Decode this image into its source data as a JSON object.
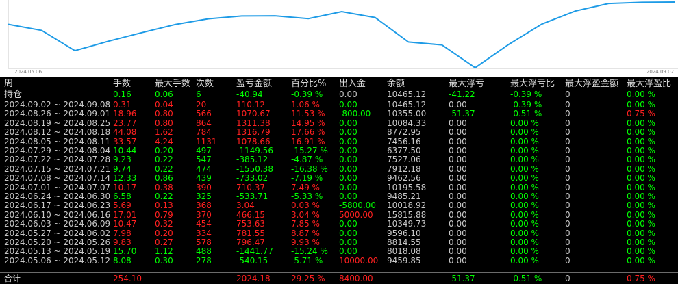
{
  "chart": {
    "axis_start_label": "2024.05.06",
    "axis_end_label": "2024.09.02",
    "line_color": "#1e9be6",
    "series": [
      10204.2,
      10117.6,
      9829.5,
      9962.9,
      10084.3,
      10200.4,
      10281.9,
      10322.0,
      10324.5,
      10284.5,
      10384.3,
      10300.1,
      9952.4,
      9911.9,
      9587.2,
      9917.0,
      10207.5,
      10391.5,
      10499.7,
      10516.0,
      10520.0
    ]
  },
  "colors": {
    "green": "#00ff00",
    "red": "#ff2020",
    "gray": "#c8c8c8",
    "header": "#d8d8d8"
  },
  "headers": {
    "col1": "周",
    "col1b": "持仓",
    "col2": "手数",
    "col3": "最大手数",
    "col4": "次数",
    "col5": "盈亏金额",
    "col6": "百分比%",
    "col7": "出入金",
    "col8": "余额",
    "col9": "最大浮亏",
    "col10": "最大浮亏比",
    "col11": "最大浮盈金额",
    "col12": "最大浮盈比"
  },
  "holding": {
    "lots": "0.16",
    "max_lots": "0.06",
    "count": "6",
    "pnl": "-40.94",
    "pct": "-0.39 %",
    "flow": "0.00",
    "balance": "10465.12",
    "max_float_loss": "-41.22",
    "max_float_loss_pct": "-0.39 %",
    "max_float_profit": "0",
    "max_float_profit_pct": "0.00 %"
  },
  "rows": [
    {
      "week": "2024.09.02 ~ 2024.09.08",
      "lots": "0.31",
      "max_lots": "0.04",
      "count": "20",
      "pnl": "110.12",
      "pct": "1.06 %",
      "flow": "0.00",
      "balance": "10465.12",
      "mfl": "0.00",
      "mflp": "-0.39 %",
      "mfp": "0",
      "mfpp": "0.00 %",
      "c": "r",
      "flow_c": "g",
      "mfpp_c": "g"
    },
    {
      "week": "2024.08.26 ~ 2024.09.01",
      "lots": "18.96",
      "max_lots": "0.80",
      "count": "566",
      "pnl": "1070.67",
      "pct": "11.53 %",
      "flow": "-800.00",
      "balance": "10355.00",
      "mfl": "-51.37",
      "mflp": "-0.51 %",
      "mfp": "0",
      "mfpp": "0.75 %",
      "c": "r",
      "flow_c": "g",
      "mfpp_c": "r"
    },
    {
      "week": "2024.08.19 ~ 2024.08.25",
      "lots": "23.77",
      "max_lots": "0.80",
      "count": "864",
      "pnl": "1311.38",
      "pct": "14.95 %",
      "flow": "0.00",
      "balance": "10084.33",
      "mfl": "0.00",
      "mflp": "0.00 %",
      "mfp": "0",
      "mfpp": "0.00 %",
      "c": "r",
      "flow_c": "g",
      "mfpp_c": "g"
    },
    {
      "week": "2024.08.12 ~ 2024.08.18",
      "lots": "44.08",
      "max_lots": "1.62",
      "count": "784",
      "pnl": "1316.79",
      "pct": "17.66 %",
      "flow": "0.00",
      "balance": "8772.95",
      "mfl": "0.00",
      "mflp": "0.00 %",
      "mfp": "0",
      "mfpp": "0.00 %",
      "c": "r",
      "flow_c": "g",
      "mfpp_c": "g"
    },
    {
      "week": "2024.08.05 ~ 2024.08.11",
      "lots": "33.57",
      "max_lots": "4.24",
      "count": "1131",
      "pnl": "1078.66",
      "pct": "16.91 %",
      "flow": "0.00",
      "balance": "7456.16",
      "mfl": "0.00",
      "mflp": "0.00 %",
      "mfp": "0",
      "mfpp": "0.00 %",
      "c": "r",
      "flow_c": "g",
      "mfpp_c": "g"
    },
    {
      "week": "2024.07.29 ~ 2024.08.04",
      "lots": "10.44",
      "max_lots": "0.20",
      "count": "497",
      "pnl": "-1149.56",
      "pct": "-15.27 %",
      "flow": "0.00",
      "balance": "6377.50",
      "mfl": "0.00",
      "mflp": "0.00 %",
      "mfp": "0",
      "mfpp": "0.00 %",
      "c": "g",
      "flow_c": "g",
      "mfpp_c": "g"
    },
    {
      "week": "2024.07.22 ~ 2024.07.28",
      "lots": "9.23",
      "max_lots": "0.22",
      "count": "547",
      "pnl": "-385.12",
      "pct": "-4.87 %",
      "flow": "0.00",
      "balance": "7527.06",
      "mfl": "0.00",
      "mflp": "0.00 %",
      "mfp": "0",
      "mfpp": "0.00 %",
      "c": "g",
      "flow_c": "g",
      "mfpp_c": "g"
    },
    {
      "week": "2024.07.15 ~ 2024.07.21",
      "lots": "9.74",
      "max_lots": "0.22",
      "count": "474",
      "pnl": "-1550.38",
      "pct": "-16.38 %",
      "flow": "0.00",
      "balance": "7912.18",
      "mfl": "0.00",
      "mflp": "0.00 %",
      "mfp": "0",
      "mfpp": "0.00 %",
      "c": "g",
      "flow_c": "g",
      "mfpp_c": "g"
    },
    {
      "week": "2024.07.08 ~ 2024.07.14",
      "lots": "12.33",
      "max_lots": "0.86",
      "count": "439",
      "pnl": "-733.02",
      "pct": "-7.19 %",
      "flow": "0.00",
      "balance": "9462.56",
      "mfl": "0.00",
      "mflp": "0.00 %",
      "mfp": "0",
      "mfpp": "0.00 %",
      "c": "g",
      "flow_c": "g",
      "mfpp_c": "g"
    },
    {
      "week": "2024.07.01 ~ 2024.07.07",
      "lots": "10.17",
      "max_lots": "0.38",
      "count": "390",
      "pnl": "710.37",
      "pct": "7.49 %",
      "flow": "0.00",
      "balance": "10195.58",
      "mfl": "0.00",
      "mflp": "0.00 %",
      "mfp": "0",
      "mfpp": "0.00 %",
      "c": "r",
      "flow_c": "g",
      "mfpp_c": "g"
    },
    {
      "week": "2024.06.24 ~ 2024.06.30",
      "lots": "6.58",
      "max_lots": "0.22",
      "count": "325",
      "pnl": "-533.71",
      "pct": "-5.33 %",
      "flow": "0.00",
      "balance": "9485.21",
      "mfl": "0.00",
      "mflp": "0.00 %",
      "mfp": "0",
      "mfpp": "0.00 %",
      "c": "g",
      "flow_c": "g",
      "mfpp_c": "g"
    },
    {
      "week": "2024.06.17 ~ 2024.06.23",
      "lots": "5.69",
      "max_lots": "0.13",
      "count": "368",
      "pnl": "3.04",
      "pct": "0.03 %",
      "flow": "-5800.00",
      "balance": "10018.92",
      "mfl": "0.00",
      "mflp": "0.00 %",
      "mfp": "0",
      "mfpp": "0.00 %",
      "c": "r",
      "flow_c": "g",
      "mfpp_c": "g"
    },
    {
      "week": "2024.06.10 ~ 2024.06.16",
      "lots": "17.01",
      "max_lots": "0.79",
      "count": "370",
      "pnl": "466.15",
      "pct": "3.04 %",
      "flow": "5000.00",
      "balance": "15815.88",
      "mfl": "0.00",
      "mflp": "0.00 %",
      "mfp": "0",
      "mfpp": "0.00 %",
      "c": "r",
      "flow_c": "r",
      "mfpp_c": "g"
    },
    {
      "week": "2024.06.03 ~ 2024.06.09",
      "lots": "10.47",
      "max_lots": "0.32",
      "count": "454",
      "pnl": "753.63",
      "pct": "7.85 %",
      "flow": "0.00",
      "balance": "10349.73",
      "mfl": "0.00",
      "mflp": "0.00 %",
      "mfp": "0",
      "mfpp": "0.00 %",
      "c": "r",
      "flow_c": "g",
      "mfpp_c": "g"
    },
    {
      "week": "2024.05.27 ~ 2024.06.02",
      "lots": "7.98",
      "max_lots": "0.20",
      "count": "334",
      "pnl": "781.55",
      "pct": "8.87 %",
      "flow": "0.00",
      "balance": "9596.10",
      "mfl": "0.00",
      "mflp": "0.00 %",
      "mfp": "0",
      "mfpp": "0.00 %",
      "c": "r",
      "flow_c": "g",
      "mfpp_c": "g"
    },
    {
      "week": "2024.05.20 ~ 2024.05.26",
      "lots": "9.83",
      "max_lots": "0.27",
      "count": "578",
      "pnl": "796.47",
      "pct": "9.93 %",
      "flow": "0.00",
      "balance": "8814.55",
      "mfl": "0.00",
      "mflp": "0.00 %",
      "mfp": "0",
      "mfpp": "0.00 %",
      "c": "r",
      "flow_c": "g",
      "mfpp_c": "g"
    },
    {
      "week": "2024.05.13 ~ 2024.05.19",
      "lots": "15.70",
      "max_lots": "1.12",
      "count": "488",
      "pnl": "-1441.77",
      "pct": "-15.24 %",
      "flow": "0.00",
      "balance": "8018.08",
      "mfl": "0.00",
      "mflp": "0.00 %",
      "mfp": "0",
      "mfpp": "0.00 %",
      "c": "g",
      "flow_c": "g",
      "mfpp_c": "g"
    },
    {
      "week": "2024.05.06 ~ 2024.05.12",
      "lots": "8.08",
      "max_lots": "0.30",
      "count": "278",
      "pnl": "-540.15",
      "pct": "-5.71 %",
      "flow": "10000.00",
      "balance": "9459.85",
      "mfl": "0.00",
      "mflp": "0.00 %",
      "mfp": "0",
      "mfpp": "0.00 %",
      "c": "g",
      "flow_c": "r",
      "mfpp_c": "g"
    }
  ],
  "total": {
    "label": "合计",
    "lots": "254.10",
    "pnl": "2024.18",
    "pct": "29.25 %",
    "flow": "8400.00",
    "mfl": "-51.37",
    "mflp": "-0.51 %",
    "mfp": "0",
    "mfpp": "0.75 %"
  }
}
